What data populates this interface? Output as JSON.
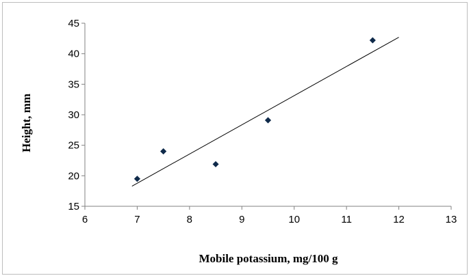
{
  "chart_data": {
    "type": "scatter",
    "xlabel": "Mobile potassium, mg/100 g",
    "ylabel": "Height, mm",
    "xlim": [
      6,
      13
    ],
    "ylim": [
      15,
      45
    ],
    "x_ticks": [
      6,
      7,
      8,
      9,
      10,
      11,
      12,
      13
    ],
    "y_ticks": [
      15,
      20,
      25,
      30,
      35,
      40,
      45
    ],
    "grid": false,
    "legend": "none",
    "points": [
      {
        "x": 7.0,
        "y": 19.5
      },
      {
        "x": 7.5,
        "y": 24.0
      },
      {
        "x": 8.5,
        "y": 21.9
      },
      {
        "x": 9.5,
        "y": 29.1
      },
      {
        "x": 11.5,
        "y": 42.2
      }
    ],
    "trendline": {
      "type": "linear",
      "x_start": 6.9,
      "y_start": 18.3,
      "x_end": 12.0,
      "y_end": 42.7
    },
    "marker_color": "#0f2a4a",
    "line_color": "#000000",
    "marker_shape": "diamond"
  }
}
